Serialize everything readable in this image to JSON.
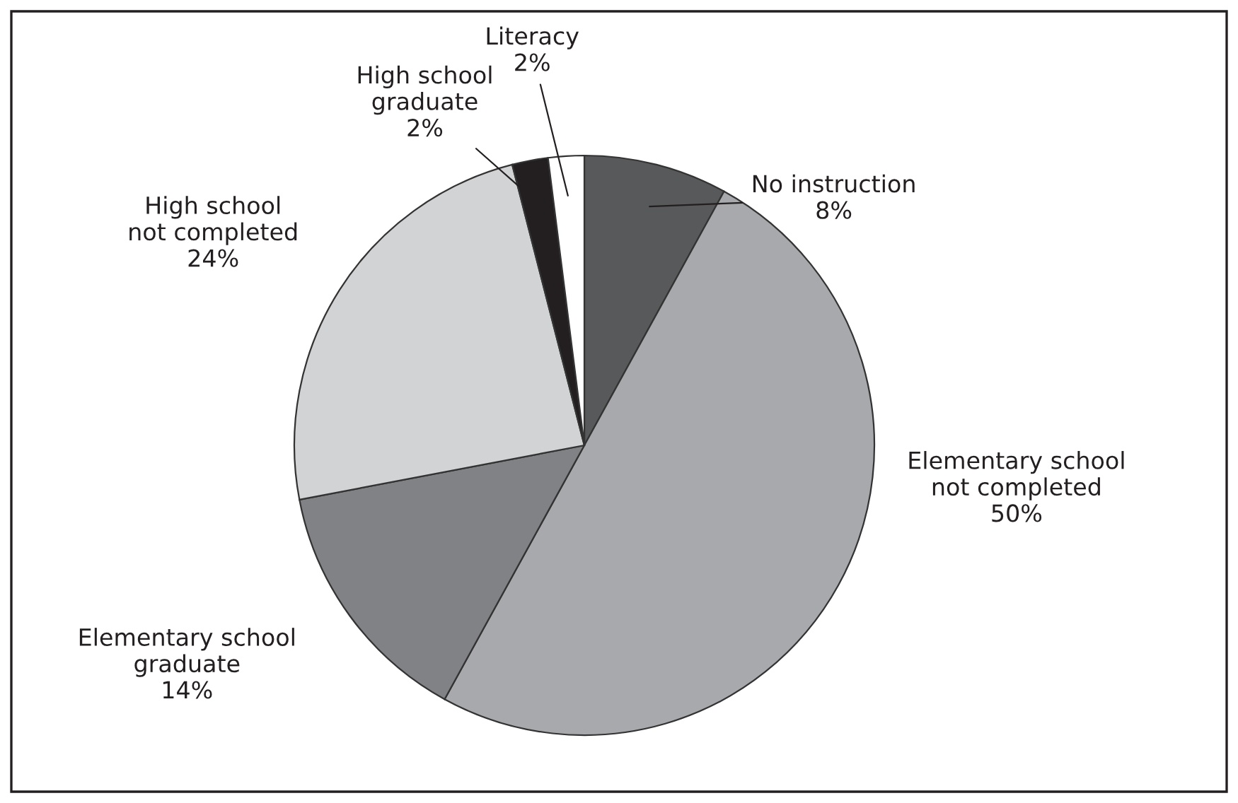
{
  "chart_data": {
    "type": "pie",
    "categories": [
      "No instruction",
      "Elementary school\nnot completed",
      "Elementary school\ngraduate",
      "High school\nnot completed",
      "High school\ngraduate",
      "Literacy"
    ],
    "values": [
      8,
      50,
      14,
      24,
      2,
      2
    ],
    "value_labels": [
      "8%",
      "50%",
      "14%",
      "24%",
      "2%",
      "2%"
    ],
    "colors": [
      "#58595b",
      "#a7a9ac",
      "#808285",
      "#d1d3d4",
      "#231f20",
      "#ffffff"
    ],
    "legend": false
  }
}
